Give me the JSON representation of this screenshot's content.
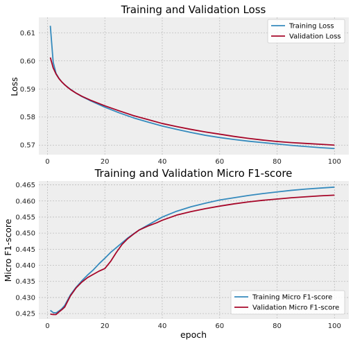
{
  "colors": {
    "panel_bg": "#eeeeee",
    "grid": "#bcbcbc",
    "training": "#348abd",
    "validation": "#a60628"
  },
  "chart_data": [
    {
      "type": "line",
      "title": "Training and Validation Loss",
      "xlabel": "",
      "ylabel": "Loss",
      "xlim": [
        -3,
        105
      ],
      "ylim": [
        0.5666,
        0.6155
      ],
      "xticks": [
        0,
        20,
        40,
        60,
        80,
        100
      ],
      "yticks": [
        0.57,
        0.58,
        0.59,
        0.6,
        0.61
      ],
      "ytick_labels": [
        "0.57",
        "0.58",
        "0.59",
        "0.60",
        "0.61"
      ],
      "grid": true,
      "legend": "upper right",
      "series": [
        {
          "name": "Training Loss",
          "x": [
            1,
            2,
            3,
            4,
            5,
            6,
            7,
            8,
            10,
            12,
            15,
            20,
            25,
            30,
            35,
            40,
            45,
            50,
            55,
            60,
            65,
            70,
            75,
            80,
            85,
            90,
            95,
            100
          ],
          "y": [
            0.6125,
            0.5995,
            0.5955,
            0.5938,
            0.5925,
            0.5915,
            0.5907,
            0.5899,
            0.5885,
            0.5873,
            0.5858,
            0.5835,
            0.5815,
            0.5797,
            0.5782,
            0.5768,
            0.5756,
            0.5745,
            0.5735,
            0.5727,
            0.572,
            0.5714,
            0.5709,
            0.5704,
            0.5699,
            0.5695,
            0.5691,
            0.5688
          ]
        },
        {
          "name": "Validation Loss",
          "x": [
            1,
            2,
            3,
            4,
            5,
            6,
            7,
            8,
            10,
            12,
            15,
            20,
            25,
            30,
            35,
            40,
            45,
            50,
            55,
            60,
            65,
            70,
            75,
            80,
            85,
            90,
            95,
            100
          ],
          "y": [
            0.6012,
            0.5975,
            0.5953,
            0.5937,
            0.5925,
            0.5915,
            0.5906,
            0.5898,
            0.5885,
            0.5874,
            0.586,
            0.584,
            0.5822,
            0.5805,
            0.5791,
            0.5777,
            0.5766,
            0.5756,
            0.5747,
            0.5739,
            0.5731,
            0.5724,
            0.5718,
            0.5713,
            0.5709,
            0.5706,
            0.5703,
            0.57
          ]
        }
      ]
    },
    {
      "type": "line",
      "title": "Training and Validation Micro F1-score",
      "xlabel": "epoch",
      "ylabel": "Micro F1-score",
      "xlim": [
        -3,
        105
      ],
      "ylim": [
        0.4233,
        0.4662
      ],
      "xticks": [
        0,
        20,
        40,
        60,
        80,
        100
      ],
      "yticks": [
        0.425,
        0.43,
        0.435,
        0.44,
        0.445,
        0.45,
        0.455,
        0.46,
        0.465
      ],
      "ytick_labels": [
        "0.425",
        "0.430",
        "0.435",
        "0.440",
        "0.445",
        "0.450",
        "0.455",
        "0.460",
        "0.465"
      ],
      "grid": true,
      "legend": "lower right",
      "series": [
        {
          "name": "Training Micro F1-score",
          "x": [
            1,
            2,
            3,
            4,
            5,
            6,
            8,
            10,
            12,
            14,
            16,
            18,
            20,
            22,
            24,
            26,
            28,
            30,
            32,
            35,
            38,
            40,
            45,
            50,
            55,
            60,
            65,
            70,
            75,
            80,
            85,
            90,
            95,
            100
          ],
          "y": [
            0.426,
            0.4253,
            0.4252,
            0.4258,
            0.4265,
            0.4275,
            0.4308,
            0.4332,
            0.4352,
            0.437,
            0.4386,
            0.4405,
            0.4422,
            0.444,
            0.4455,
            0.447,
            0.4485,
            0.4498,
            0.451,
            0.4525,
            0.454,
            0.455,
            0.4568,
            0.4582,
            0.4593,
            0.4603,
            0.461,
            0.4617,
            0.4623,
            0.4628,
            0.4633,
            0.4637,
            0.464,
            0.4643
          ]
        },
        {
          "name": "Validation Micro F1-score",
          "x": [
            1,
            2,
            3,
            4,
            5,
            6,
            8,
            10,
            12,
            14,
            16,
            18,
            20,
            22,
            24,
            26,
            28,
            30,
            32,
            35,
            38,
            40,
            45,
            50,
            55,
            60,
            65,
            70,
            75,
            80,
            85,
            90,
            95,
            100
          ],
          "y": [
            0.4248,
            0.4247,
            0.4247,
            0.4255,
            0.4262,
            0.427,
            0.4305,
            0.433,
            0.4348,
            0.4362,
            0.4372,
            0.4382,
            0.439,
            0.4412,
            0.444,
            0.4465,
            0.4483,
            0.4497,
            0.451,
            0.4522,
            0.4532,
            0.454,
            0.4556,
            0.4567,
            0.4576,
            0.4584,
            0.4591,
            0.4597,
            0.4602,
            0.4606,
            0.461,
            0.4613,
            0.4616,
            0.4618
          ]
        }
      ]
    }
  ]
}
